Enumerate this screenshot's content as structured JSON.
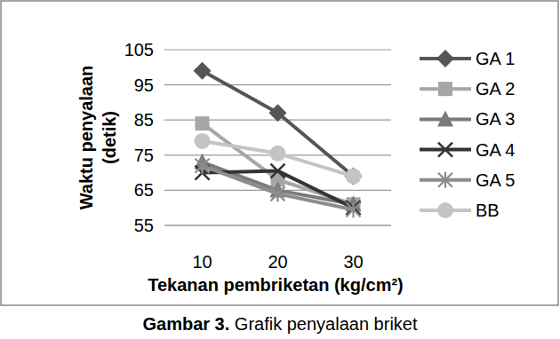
{
  "chart_data": {
    "type": "line",
    "title": "Gambar 3. Grafik penyalaan briket",
    "x_label": "Tekanan pembriketan (kg/cm²)",
    "y_label": "Waktu penyalaan (detik)",
    "categories": [
      "10",
      "20",
      "30"
    ],
    "series": [
      {
        "name": "GA 1",
        "color": "#555555",
        "marker": "diamond",
        "values": [
          99,
          87,
          69
        ]
      },
      {
        "name": "GA 2",
        "color": "#a6a6a6",
        "marker": "square",
        "values": [
          84,
          68,
          61
        ]
      },
      {
        "name": "GA 3",
        "color": "#7a7a7a",
        "marker": "triangle",
        "values": [
          73,
          65,
          61
        ]
      },
      {
        "name": "GA 4",
        "color": "#333333",
        "marker": "x",
        "values": [
          70,
          70.5,
          60
        ]
      },
      {
        "name": "GA 5",
        "color": "#8c8c8c",
        "marker": "star",
        "values": [
          72,
          64,
          59.5
        ]
      },
      {
        "name": "BB",
        "color": "#c4c4c4",
        "marker": "circle",
        "values": [
          79,
          75.5,
          69
        ]
      }
    ],
    "ylim": [
      55,
      105
    ],
    "yticks": [
      55,
      65,
      75,
      85,
      95,
      105
    ],
    "grid": true,
    "legend": "right"
  }
}
